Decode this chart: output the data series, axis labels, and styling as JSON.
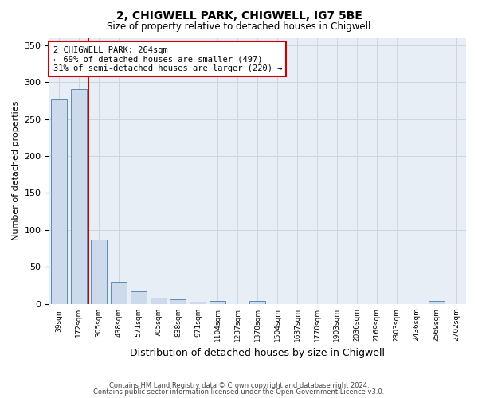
{
  "title1": "2, CHIGWELL PARK, CHIGWELL, IG7 5BE",
  "title2": "Size of property relative to detached houses in Chigwell",
  "xlabel": "Distribution of detached houses by size in Chigwell",
  "ylabel": "Number of detached properties",
  "bin_labels": [
    "39sqm",
    "172sqm",
    "305sqm",
    "438sqm",
    "571sqm",
    "705sqm",
    "838sqm",
    "971sqm",
    "1104sqm",
    "1237sqm",
    "1370sqm",
    "1504sqm",
    "1637sqm",
    "1770sqm",
    "1903sqm",
    "2036sqm",
    "2169sqm",
    "2303sqm",
    "2436sqm",
    "2569sqm",
    "2702sqm"
  ],
  "bar_heights": [
    278,
    290,
    87,
    30,
    17,
    8,
    6,
    3,
    4,
    0,
    4,
    0,
    0,
    0,
    0,
    0,
    0,
    0,
    0,
    4,
    0
  ],
  "bar_color": "#ccdaeb",
  "bar_edge_color": "#5b8db8",
  "vline_color": "#cc0000",
  "annotation_text": "2 CHIGWELL PARK: 264sqm\n← 69% of detached houses are smaller (497)\n31% of semi-detached houses are larger (220) →",
  "annotation_box_color": "#ffffff",
  "annotation_box_edge": "#cc0000",
  "ylim": [
    0,
    360
  ],
  "yticks": [
    0,
    50,
    100,
    150,
    200,
    250,
    300,
    350
  ],
  "footer1": "Contains HM Land Registry data © Crown copyright and database right 2024.",
  "footer2": "Contains public sector information licensed under the Open Government Licence v3.0.",
  "grid_color": "#ccd6e0",
  "background_color": "#e8eef5",
  "vline_x_index": 1.47
}
